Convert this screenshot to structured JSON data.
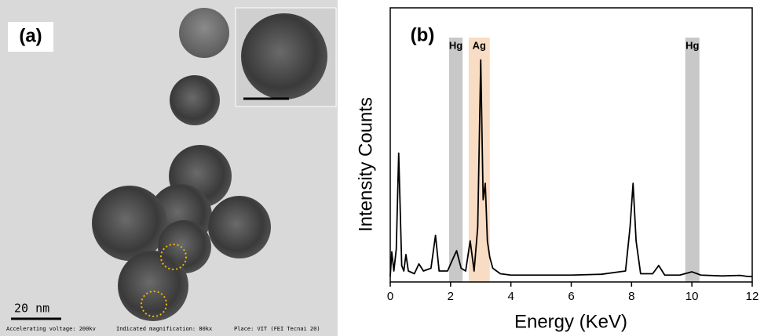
{
  "panel_a": {
    "label": "(a)",
    "scale_bar": "20 nm",
    "footer": [
      "Accelerating voltage: 200kv",
      "Indicated magnification: 80kx",
      "Place: VIT (FEI Tecnai 20)"
    ]
  },
  "chart_data": {
    "type": "line",
    "panel_label": "(b)",
    "x_label": "Energy (KeV)",
    "y_label": "Intensity  Counts",
    "x": [
      0,
      0.05,
      0.12,
      0.2,
      0.28,
      0.38,
      0.45,
      0.52,
      0.6,
      0.8,
      0.95,
      1.1,
      1.35,
      1.5,
      1.62,
      1.9,
      2.1,
      2.2,
      2.35,
      2.5,
      2.65,
      2.78,
      2.9,
      3.0,
      3.08,
      3.15,
      3.22,
      3.3,
      3.4,
      3.65,
      4.0,
      5,
      6,
      7,
      7.8,
      7.95,
      8.05,
      8.15,
      8.3,
      8.7,
      8.9,
      9.1,
      9.6,
      10.0,
      10.3,
      11,
      11.6,
      11.85,
      12
    ],
    "values": [
      2,
      11,
      4,
      12,
      47,
      6,
      4,
      10,
      4,
      3,
      6.6,
      4,
      5,
      17,
      4,
      4,
      9,
      11.4,
      5,
      4,
      15,
      4,
      20,
      81,
      30,
      36,
      15,
      9,
      5,
      3,
      2.5,
      2.5,
      2.5,
      2.8,
      4,
      20,
      36,
      15,
      3,
      3,
      6,
      2.5,
      2.5,
      3.7,
      2.5,
      2.2,
      2.4,
      2,
      2
    ],
    "color": "#000000",
    "xlim": [
      0,
      12
    ],
    "xticks": [
      0,
      2,
      4,
      6,
      8,
      10,
      12
    ],
    "ylim": [
      0,
      100
    ],
    "bands": [
      {
        "label": "Hg",
        "range": [
          1.95,
          2.4
        ],
        "color": "#c8c8c8"
      },
      {
        "label": "Ag",
        "range": [
          2.6,
          3.3
        ],
        "color": "#f9dcc4"
      },
      {
        "label": "Hg",
        "range": [
          9.78,
          10.25
        ],
        "color": "#c8c8c8"
      }
    ]
  }
}
